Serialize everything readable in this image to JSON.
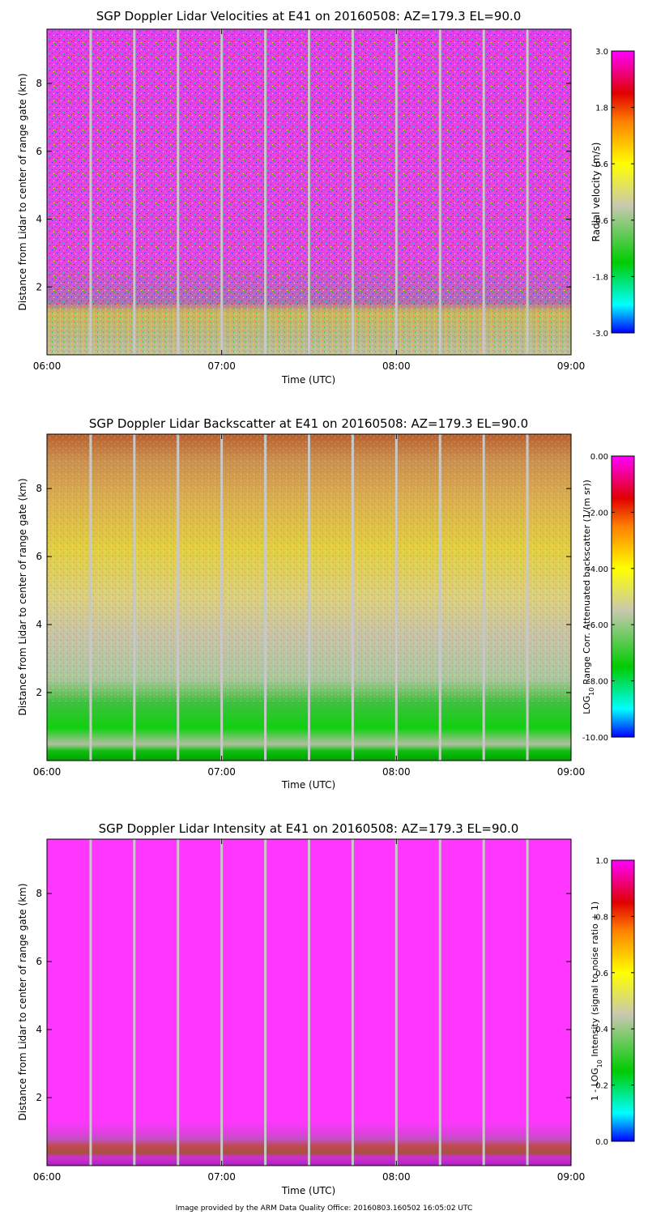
{
  "chart_data": [
    {
      "type": "heatmap",
      "title": "SGP Doppler Lidar Velocities at E41 on 20160508: AZ=179.3 EL=90.0",
      "xlabel": "Time (UTC)",
      "ylabel": "Distance from Lidar to center of range gate (km)",
      "x_ticks": [
        "06:00",
        "07:00",
        "08:00",
        "09:00"
      ],
      "x_range_utc": [
        "06:00",
        "09:00"
      ],
      "y_ticks": [
        2,
        4,
        6,
        8
      ],
      "ylim_km": [
        0,
        9.6
      ],
      "gap_times_utc": [
        "06:15",
        "06:30",
        "06:45",
        "07:00",
        "07:15",
        "07:30",
        "07:45",
        "08:00",
        "08:15",
        "08:30",
        "08:45"
      ],
      "colorbar": {
        "label": "Radial velocity (m/s)",
        "range": [
          -3.0,
          3.0
        ],
        "ticks": [
          "3.0",
          "1.8",
          "0.6",
          "-0.6",
          "-1.8",
          "-3.0"
        ]
      },
      "features": {
        "noise_above_km": 1.3,
        "signal_layer_km": [
          0,
          1.3
        ]
      },
      "colors": {
        "noise": "#ee44ee",
        "layer": "#c8b870"
      }
    },
    {
      "type": "heatmap",
      "title": "SGP Doppler Lidar Backscatter at E41 on 20160508: AZ=179.3 EL=90.0",
      "xlabel": "Time (UTC)",
      "ylabel": "Distance from Lidar to center of range gate (km)",
      "x_ticks": [
        "06:00",
        "07:00",
        "08:00",
        "09:00"
      ],
      "x_range_utc": [
        "06:00",
        "09:00"
      ],
      "y_ticks": [
        2,
        4,
        6,
        8
      ],
      "ylim_km": [
        0,
        9.6
      ],
      "gap_times_utc": [
        "06:15",
        "06:30",
        "06:45",
        "07:00",
        "07:15",
        "07:30",
        "07:45",
        "08:00",
        "08:15",
        "08:30",
        "08:45"
      ],
      "colorbar": {
        "label": "LOG10 Range Corr. Attenuated backscatter (1/(m sr))",
        "label_pre": "LOG",
        "label_sub": "10",
        "label_post": " Range Corr. Attenuated backscatter (1/(m sr))",
        "range": [
          -10.0,
          0.0
        ],
        "ticks": [
          "0.00",
          "-2.00",
          "-4.00",
          "-6.00",
          "-8.00",
          "-10.00"
        ]
      },
      "features": {
        "green_layer_km": [
          0,
          1.5
        ],
        "yellow_band_km": [
          4,
          7.5
        ],
        "orange_top_km": [
          8,
          9.6
        ]
      },
      "colors": {
        "top": "#c06030",
        "mid": "#e8d830",
        "low": "#c0c0a0",
        "bottom": "#20c020"
      }
    },
    {
      "type": "heatmap",
      "title": "SGP Doppler Lidar Intensity at E41 on 20160508: AZ=179.3 EL=90.0",
      "xlabel": "Time (UTC)",
      "ylabel": "Distance from Lidar to center of range gate (km)",
      "x_ticks": [
        "06:00",
        "07:00",
        "08:00",
        "09:00"
      ],
      "x_range_utc": [
        "06:00",
        "09:00"
      ],
      "y_ticks": [
        2,
        4,
        6,
        8
      ],
      "ylim_km": [
        0,
        9.6
      ],
      "gap_times_utc": [
        "06:15",
        "06:30",
        "06:45",
        "07:00",
        "07:15",
        "07:30",
        "07:45",
        "08:00",
        "08:15",
        "08:30",
        "08:45"
      ],
      "colorbar": {
        "label": "1 - LOG10 Intensity (signal to noise ratio + 1)",
        "label_pre": "1 - LOG",
        "label_sub": "10",
        "label_post": " Intensity (signal to noise ratio + 1)",
        "range": [
          0.0,
          1.0
        ],
        "ticks": [
          "1.0",
          "0.8",
          "0.6",
          "0.4",
          "0.2",
          "0.0"
        ]
      },
      "features": {
        "magenta_above_km": 1.0,
        "red_band_km": [
          0.35,
          0.45
        ]
      },
      "colors": {
        "field": "#ff33ff",
        "band": "#c04040"
      }
    }
  ],
  "footer": {
    "credit": "Image provided by the ARM Data Quality Office: 20160803.160502 16:05:02 UTC"
  }
}
